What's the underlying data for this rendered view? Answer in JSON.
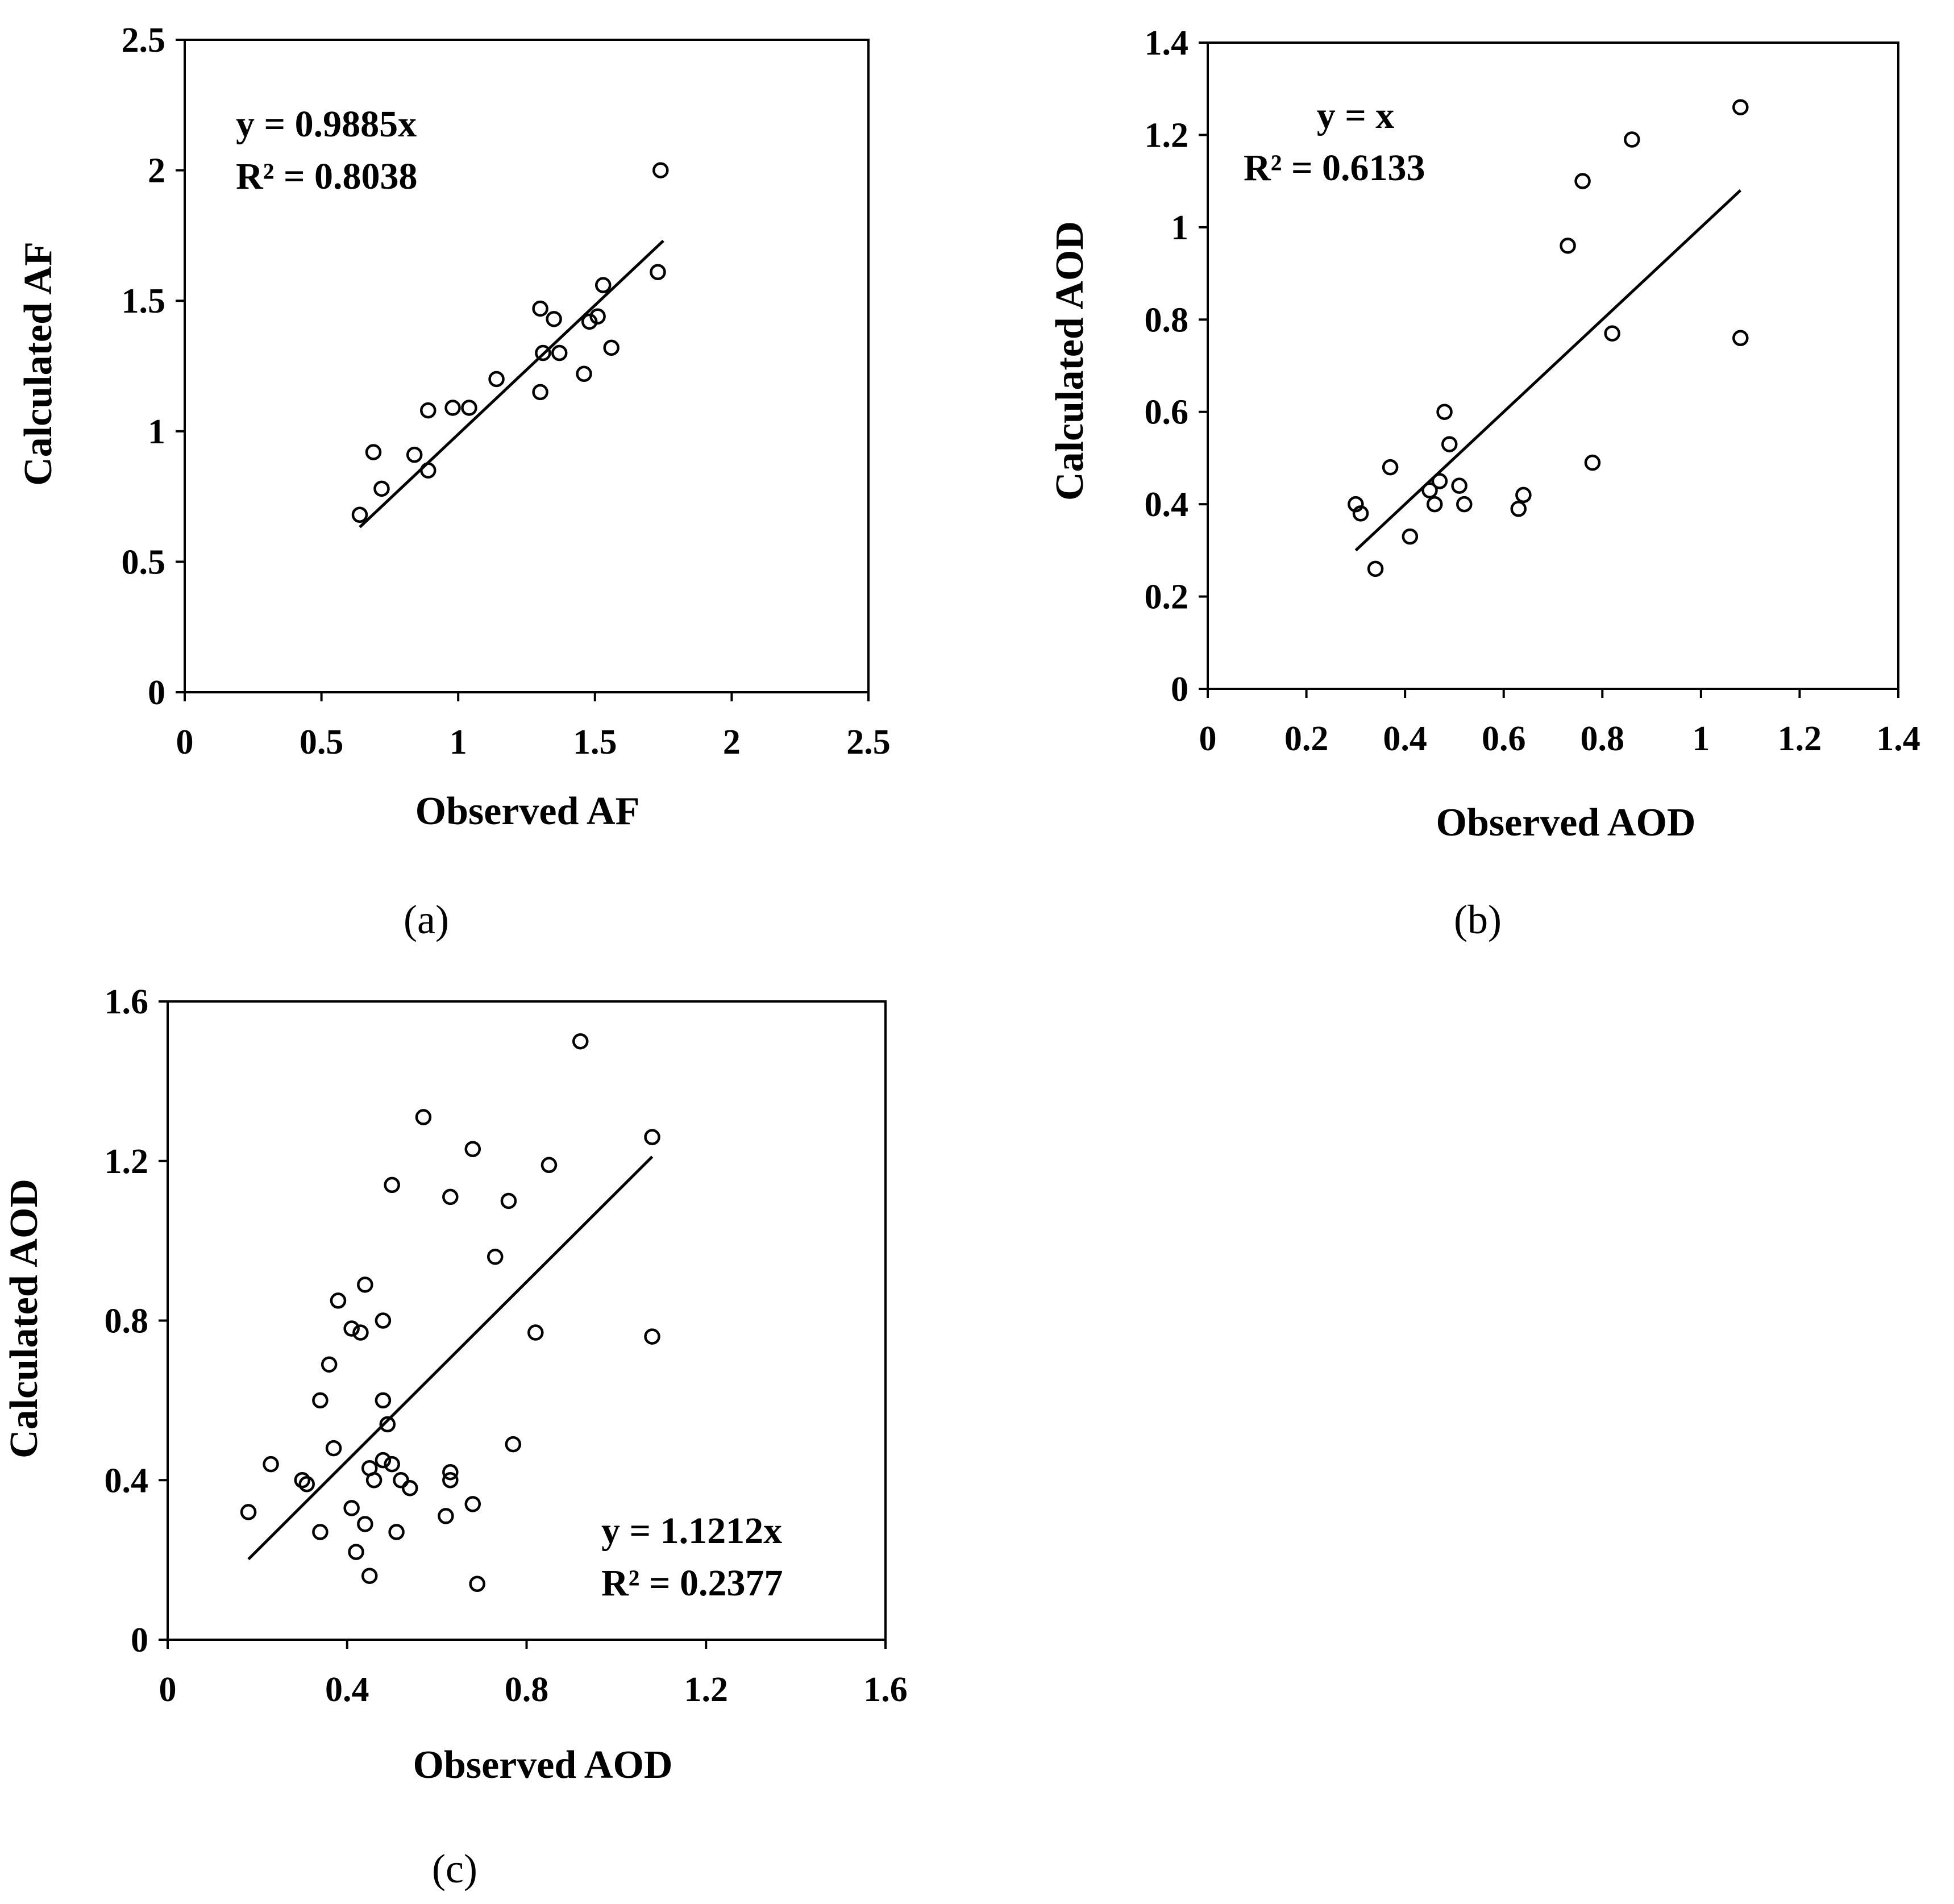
{
  "chart_data": [
    {
      "id": "a",
      "type": "scatter",
      "caption": "(a)",
      "xlabel": "Observed AF",
      "ylabel": "Calculated AF",
      "xlim": [
        0,
        2.5
      ],
      "ylim": [
        0,
        2.5
      ],
      "xticks": [
        0,
        0.5,
        1,
        1.5,
        2,
        2.5
      ],
      "xtick_labels": [
        "0",
        "0.5",
        "1",
        "1.5",
        "2",
        "2.5"
      ],
      "yticks": [
        0,
        0.5,
        1,
        1.5,
        2,
        2.5
      ],
      "ytick_labels": [
        "0",
        "0.5",
        "1",
        "1.5",
        "2",
        "2.5"
      ],
      "annotation_lines": [
        "y = 0.9885x",
        "R² = 0.8038"
      ],
      "trendline": {
        "slope": 0.9885,
        "x_range": [
          0.64,
          1.75
        ]
      },
      "points": [
        [
          0.64,
          0.68
        ],
        [
          0.69,
          0.92
        ],
        [
          0.72,
          0.78
        ],
        [
          0.84,
          0.91
        ],
        [
          0.89,
          0.85
        ],
        [
          0.89,
          1.08
        ],
        [
          0.98,
          1.09
        ],
        [
          1.04,
          1.09
        ],
        [
          1.14,
          1.2
        ],
        [
          1.3,
          1.15
        ],
        [
          1.3,
          1.47
        ],
        [
          1.31,
          1.3
        ],
        [
          1.35,
          1.43
        ],
        [
          1.37,
          1.3
        ],
        [
          1.46,
          1.22
        ],
        [
          1.48,
          1.42
        ],
        [
          1.51,
          1.44
        ],
        [
          1.53,
          1.56
        ],
        [
          1.56,
          1.32
        ],
        [
          1.73,
          1.61
        ],
        [
          1.74,
          2.0
        ]
      ]
    },
    {
      "id": "b",
      "type": "scatter",
      "caption": "(b)",
      "xlabel": "Observed AOD",
      "ylabel": "Calculated AOD",
      "xlim": [
        0,
        1.4
      ],
      "ylim": [
        0,
        1.4
      ],
      "xticks": [
        0,
        0.2,
        0.4,
        0.6,
        0.8,
        1,
        1.2,
        1.4
      ],
      "xtick_labels": [
        "0",
        "0.2",
        "0.4",
        "0.6",
        "0.8",
        "1",
        "1.2",
        "1.4"
      ],
      "yticks": [
        0,
        0.2,
        0.4,
        0.6,
        0.8,
        1,
        1.2,
        1.4
      ],
      "ytick_labels": [
        "0",
        "0.2",
        "0.4",
        "0.6",
        "0.8",
        "1",
        "1.2",
        "1.4"
      ],
      "annotation_lines": [
        "y = x",
        "R² = 0.6133"
      ],
      "trendline": {
        "slope": 1.0,
        "x_range": [
          0.3,
          1.08
        ]
      },
      "points": [
        [
          0.3,
          0.4
        ],
        [
          0.31,
          0.38
        ],
        [
          0.34,
          0.26
        ],
        [
          0.37,
          0.48
        ],
        [
          0.41,
          0.33
        ],
        [
          0.45,
          0.43
        ],
        [
          0.46,
          0.4
        ],
        [
          0.47,
          0.45
        ],
        [
          0.48,
          0.6
        ],
        [
          0.49,
          0.53
        ],
        [
          0.51,
          0.44
        ],
        [
          0.52,
          0.4
        ],
        [
          0.63,
          0.39
        ],
        [
          0.64,
          0.42
        ],
        [
          0.73,
          0.96
        ],
        [
          0.76,
          1.1
        ],
        [
          0.78,
          0.49
        ],
        [
          0.82,
          0.77
        ],
        [
          0.86,
          1.19
        ],
        [
          1.08,
          0.76
        ],
        [
          1.08,
          1.26
        ]
      ]
    },
    {
      "id": "c",
      "type": "scatter",
      "caption": "(c)",
      "xlabel": "Observed AOD",
      "ylabel": "Calculated AOD",
      "xlim": [
        0,
        1.6
      ],
      "ylim": [
        0,
        1.6
      ],
      "xticks": [
        0,
        0.4,
        0.8,
        1.2,
        1.6
      ],
      "xtick_labels": [
        "0",
        "0.4",
        "0.8",
        "1.2",
        "1.6"
      ],
      "yticks": [
        0,
        0.4,
        0.8,
        1.2,
        1.6
      ],
      "ytick_labels": [
        "0",
        "0.4",
        "0.8",
        "1.2",
        "1.6"
      ],
      "annotation_lines": [
        "y = 1.1212x",
        "R² = 0.2377"
      ],
      "trendline": {
        "slope": 1.1212,
        "x_range": [
          0.18,
          1.08
        ]
      },
      "points": [
        [
          0.18,
          0.32
        ],
        [
          0.23,
          0.44
        ],
        [
          0.3,
          0.4
        ],
        [
          0.31,
          0.39
        ],
        [
          0.34,
          0.27
        ],
        [
          0.34,
          0.6
        ],
        [
          0.36,
          0.69
        ],
        [
          0.37,
          0.48
        ],
        [
          0.38,
          0.85
        ],
        [
          0.41,
          0.33
        ],
        [
          0.41,
          0.78
        ],
        [
          0.42,
          0.22
        ],
        [
          0.43,
          0.77
        ],
        [
          0.44,
          0.89
        ],
        [
          0.44,
          0.29
        ],
        [
          0.45,
          0.16
        ],
        [
          0.45,
          0.43
        ],
        [
          0.46,
          0.4
        ],
        [
          0.48,
          0.45
        ],
        [
          0.48,
          0.8
        ],
        [
          0.48,
          0.6
        ],
        [
          0.49,
          0.54
        ],
        [
          0.5,
          0.44
        ],
        [
          0.5,
          1.14
        ],
        [
          0.51,
          0.27
        ],
        [
          0.52,
          0.4
        ],
        [
          0.54,
          0.38
        ],
        [
          0.57,
          1.31
        ],
        [
          0.62,
          0.31
        ],
        [
          0.63,
          1.11
        ],
        [
          0.63,
          0.4
        ],
        [
          0.63,
          0.42
        ],
        [
          0.68,
          0.34
        ],
        [
          0.68,
          1.23
        ],
        [
          0.69,
          0.14
        ],
        [
          0.73,
          0.96
        ],
        [
          0.76,
          1.1
        ],
        [
          0.77,
          0.49
        ],
        [
          0.82,
          0.77
        ],
        [
          0.85,
          1.19
        ],
        [
          0.92,
          1.5
        ],
        [
          1.08,
          0.76
        ],
        [
          1.08,
          1.26
        ]
      ]
    }
  ]
}
